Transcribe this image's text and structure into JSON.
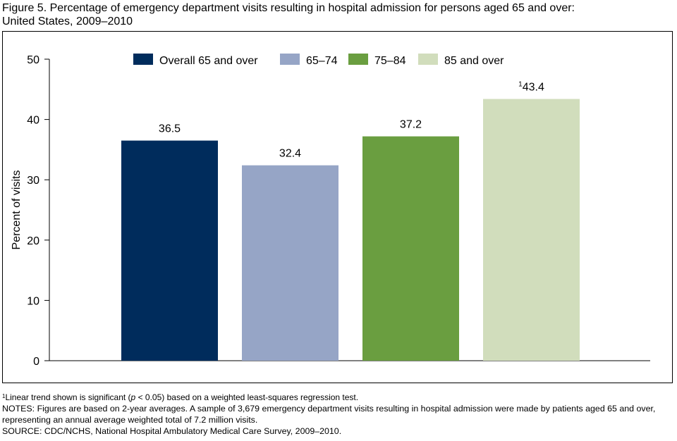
{
  "title_line1": "Figure 5. Percentage of emergency department visits resulting in hospital admission for persons aged 65 and over:",
  "title_line2": "United States, 2009–2010",
  "chart_data": {
    "type": "bar",
    "categories": [
      "Overall 65 and over",
      "65–74",
      "75–84",
      "85 and over"
    ],
    "values": [
      36.5,
      32.4,
      37.2,
      43.4
    ],
    "value_labels": [
      "36.5",
      "32.4",
      "37.2",
      "43.4"
    ],
    "value_label_superscripts": [
      "",
      "",
      "",
      "1"
    ],
    "colors": [
      "#002c5c",
      "#96a5c6",
      "#6a9e40",
      "#d1ddbc"
    ],
    "ylabel": "Percent of visits",
    "xlabel": "",
    "ylim": [
      0,
      50
    ],
    "yticks": [
      0,
      10,
      20,
      30,
      40,
      50
    ],
    "legend_position": "top",
    "grid": false
  },
  "footnotes": {
    "note1_sup": "1",
    "note1_pre": "Linear trend shown is significant (",
    "note1_p": "p",
    "note1_post": " < 0.05) based on a weighted least-squares regression test.",
    "notes": "NOTES: Figures are based on 2-year averages. A sample of 3,679 emergency department visits resulting in hospital admission were made by patients aged 65 and over, representing an annual average weighted total of 7.2 million visits.",
    "source": "SOURCE: CDC/NCHS, National Hospital Ambulatory Medical Care Survey, 2009–2010."
  }
}
